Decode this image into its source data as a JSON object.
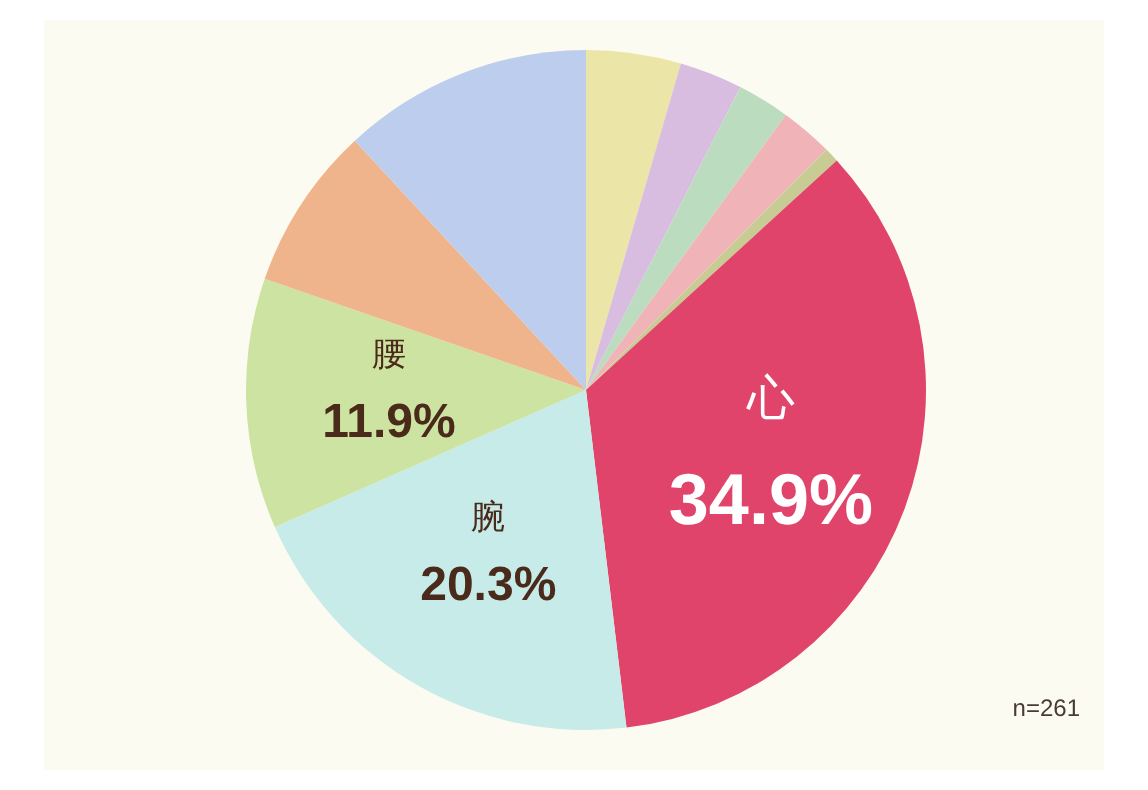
{
  "chart_data": {
    "type": "pie",
    "categories": [
      null,
      null,
      null,
      null,
      null,
      "心",
      "腕",
      "腰",
      null,
      null
    ],
    "values": [
      4.5,
      3.0,
      2.5,
      2.5,
      0.7,
      34.9,
      20.3,
      11.9,
      7.8,
      11.9
    ],
    "value_labels": [
      null,
      null,
      null,
      null,
      null,
      "34.9%",
      "20.3%",
      "11.9%",
      null,
      null
    ],
    "colors": [
      "#ebe6a8",
      "#d9bde0",
      "#bcdcc0",
      "#f0b4b8",
      "#c8cc94",
      "#e0446a",
      "#c6ebe8",
      "#cde3a2",
      "#f0b48c",
      "#bccdee"
    ],
    "annotations": [
      "n=261"
    ]
  }
}
